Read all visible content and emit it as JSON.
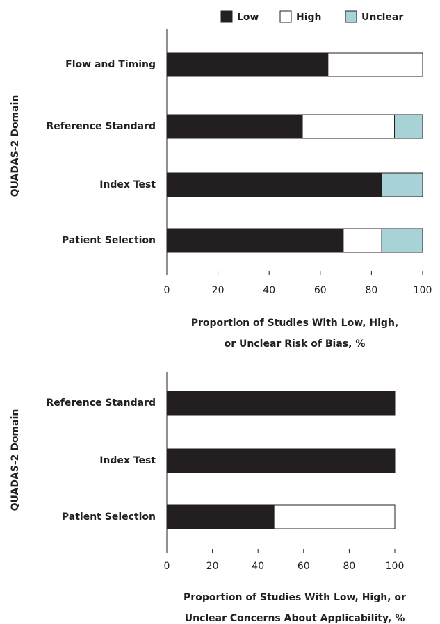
{
  "chart_data": [
    {
      "type": "stacked-bar",
      "orientation": "horizontal",
      "y_label": "QUADAS-2 Domain",
      "x_label": [
        "Proportion of Studies With Low, High,",
        "or Unclear Risk of Bias, %"
      ],
      "categories": [
        "Flow and Timing",
        "Reference Standard",
        "Index Test",
        "Patient Selection"
      ],
      "series": [
        {
          "name": "Low",
          "color": "#231f20",
          "values": [
            63,
            53,
            84,
            69
          ]
        },
        {
          "name": "High",
          "color": "#ffffff",
          "values": [
            37,
            36,
            0,
            15
          ]
        },
        {
          "name": "Unclear",
          "color": "#a7d3d6",
          "values": [
            0,
            11,
            16,
            16
          ]
        }
      ],
      "xlim": [
        0,
        100
      ],
      "xticks": [
        0,
        20,
        40,
        60,
        80,
        100
      ],
      "legend": "top"
    },
    {
      "type": "stacked-bar",
      "orientation": "horizontal",
      "y_label": "QUADAS-2 Domain",
      "x_label": [
        "Proportion of Studies With Low, High, or",
        "Unclear Concerns About Applicability, %"
      ],
      "categories": [
        "Reference Standard",
        "Index Test",
        "Patient Selection"
      ],
      "series": [
        {
          "color": "#231f20",
          "values": [
            100,
            100,
            47
          ]
        },
        {
          "color": "#ffffff",
          "values": [
            0,
            0,
            53
          ]
        }
      ],
      "xlim": [
        0,
        100
      ],
      "xticks": [
        0,
        20,
        40,
        60,
        80,
        100
      ]
    }
  ]
}
